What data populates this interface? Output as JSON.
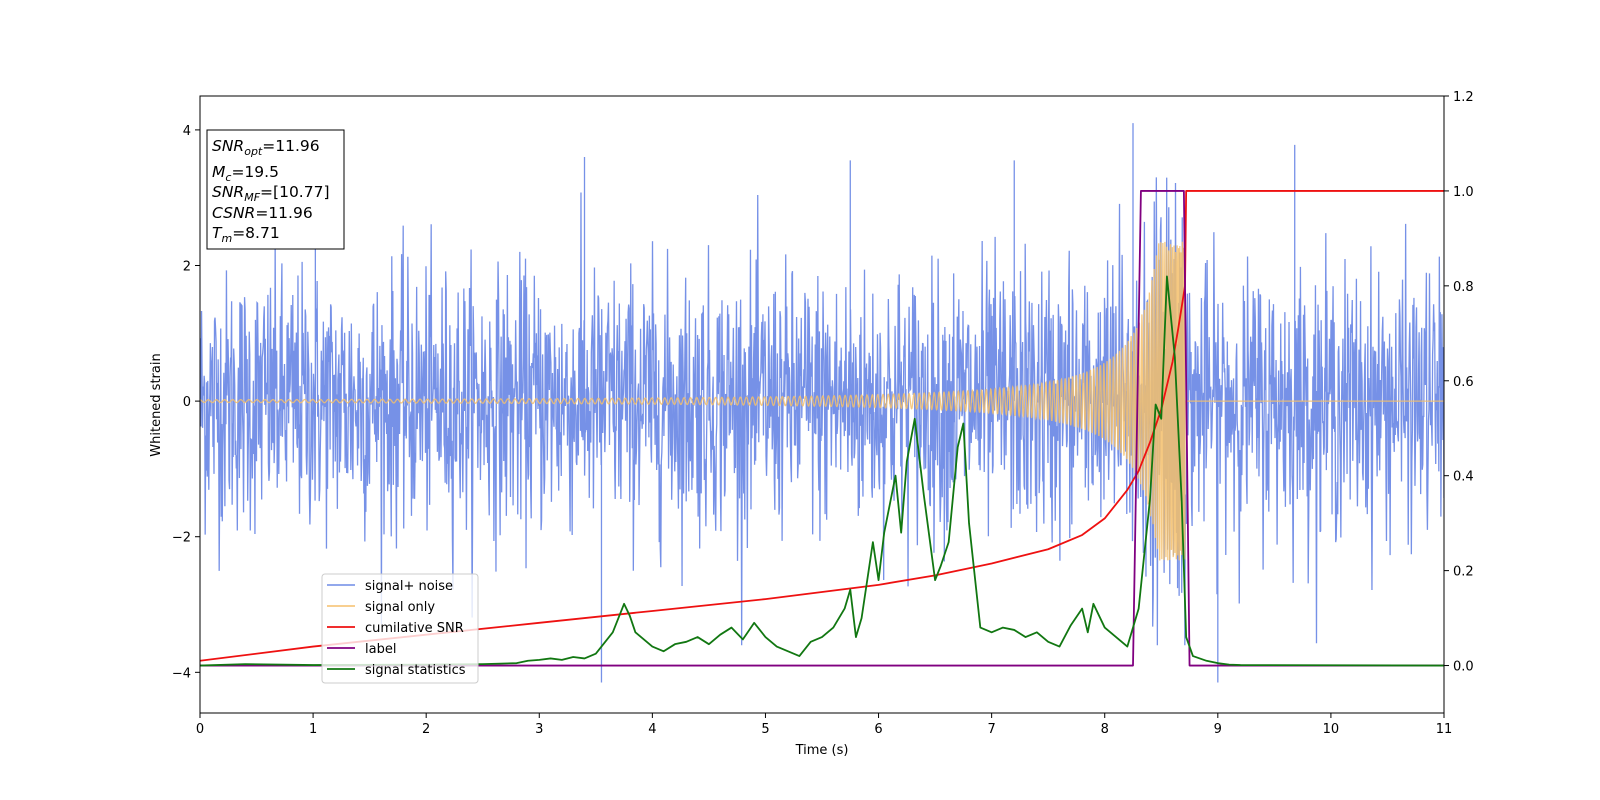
{
  "chart_data": {
    "type": "line",
    "xlabel": "Time (s)",
    "ylabel": "Whitened strain",
    "xlim": [
      0,
      11
    ],
    "ylim_left": [
      -4.6,
      4.5
    ],
    "ylim_right": [
      -0.1,
      1.2
    ],
    "x_ticks": [
      "0",
      "1",
      "2",
      "3",
      "4",
      "5",
      "6",
      "7",
      "8",
      "9",
      "10",
      "11"
    ],
    "y_ticks_left": [
      "−4",
      "−2",
      "0",
      "2",
      "4"
    ],
    "y_ticks_right": [
      "0.0",
      "0.2",
      "0.4",
      "0.6",
      "0.8",
      "1.0",
      "1.2"
    ],
    "grid": false,
    "legend_position": "lower-left",
    "annotation": {
      "snr_opt": {
        "prefix": "SNR",
        "sub": "opt",
        "value": "=11.96"
      },
      "mc": {
        "prefix": "M",
        "sub": "c",
        "value": "=19.5"
      },
      "snr_mf": {
        "prefix": "SNR",
        "sub": "MF",
        "value": "=[10.77]"
      },
      "csnr": {
        "prefix": "CSNR",
        "value": "=11.96"
      },
      "tm": {
        "prefix": "T",
        "sub": "m",
        "value": "=8.71"
      }
    },
    "series": [
      {
        "name": "signal+ noise",
        "axis": "left",
        "color": "#6f8be6",
        "envelope_sd": 1.0,
        "t_start": 0,
        "t_end": 11,
        "peaks": [
          [
            3.55,
            -4.15
          ],
          [
            8.25,
            4.1
          ],
          [
            9.0,
            -4.15
          ],
          [
            9.68,
            3.78
          ],
          [
            3.4,
            3.6
          ],
          [
            7.2,
            3.55
          ],
          [
            5.75,
            3.55
          ],
          [
            1.02,
            3.4
          ]
        ]
      },
      {
        "name": "signal only",
        "axis": "left",
        "color": "#f5bf6b",
        "t_start": 0,
        "t_merger": 8.71,
        "amplitude_start": 0.02,
        "amplitude_peak": 2.35,
        "cycles": 192
      },
      {
        "name": "cumilative SNR",
        "axis": "right",
        "color": "#ee1111",
        "x": [
          0,
          1,
          2,
          3,
          4,
          5,
          5.5,
          6,
          6.5,
          7,
          7.5,
          7.8,
          8.0,
          8.2,
          8.3,
          8.4,
          8.5,
          8.6,
          8.65,
          8.71,
          8.72,
          11
        ],
        "y": [
          0.01,
          0.04,
          0.065,
          0.09,
          0.115,
          0.14,
          0.155,
          0.17,
          0.19,
          0.215,
          0.245,
          0.275,
          0.31,
          0.37,
          0.41,
          0.47,
          0.54,
          0.64,
          0.71,
          0.8,
          1.0,
          1.0
        ]
      },
      {
        "name": "label",
        "axis": "right",
        "color": "#800080",
        "x": [
          0,
          8.25,
          8.32,
          8.7,
          8.75,
          11
        ],
        "y": [
          0,
          0,
          1,
          1,
          0,
          0
        ]
      },
      {
        "name": "signal statistics",
        "axis": "right",
        "color": "#117711",
        "x": [
          0,
          0.4,
          1,
          2,
          2.5,
          2.8,
          2.9,
          3.0,
          3.1,
          3.2,
          3.3,
          3.4,
          3.5,
          3.55,
          3.65,
          3.75,
          3.8,
          3.85,
          3.9,
          4.0,
          4.1,
          4.2,
          4.3,
          4.4,
          4.5,
          4.6,
          4.7,
          4.8,
          4.9,
          5.0,
          5.1,
          5.2,
          5.3,
          5.4,
          5.5,
          5.6,
          5.7,
          5.75,
          5.8,
          5.85,
          5.95,
          6.0,
          6.05,
          6.15,
          6.2,
          6.25,
          6.32,
          6.4,
          6.5,
          6.55,
          6.62,
          6.7,
          6.75,
          6.8,
          6.9,
          7.0,
          7.1,
          7.2,
          7.3,
          7.4,
          7.5,
          7.6,
          7.7,
          7.8,
          7.85,
          7.9,
          8.0,
          8.1,
          8.2,
          8.3,
          8.4,
          8.45,
          8.5,
          8.55,
          8.62,
          8.68,
          8.72,
          8.78,
          8.9,
          9.0,
          9.1,
          9.2,
          11
        ],
        "y": [
          0,
          0.003,
          0.001,
          0.002,
          0.003,
          0.005,
          0.01,
          0.012,
          0.015,
          0.012,
          0.018,
          0.015,
          0.025,
          0.04,
          0.07,
          0.13,
          0.105,
          0.07,
          0.06,
          0.04,
          0.03,
          0.045,
          0.05,
          0.06,
          0.045,
          0.065,
          0.08,
          0.055,
          0.09,
          0.06,
          0.04,
          0.03,
          0.02,
          0.05,
          0.06,
          0.08,
          0.12,
          0.16,
          0.06,
          0.1,
          0.26,
          0.18,
          0.28,
          0.4,
          0.28,
          0.43,
          0.52,
          0.36,
          0.18,
          0.21,
          0.26,
          0.46,
          0.51,
          0.3,
          0.08,
          0.07,
          0.08,
          0.075,
          0.06,
          0.07,
          0.05,
          0.04,
          0.085,
          0.12,
          0.07,
          0.13,
          0.08,
          0.06,
          0.04,
          0.12,
          0.35,
          0.55,
          0.52,
          0.82,
          0.65,
          0.35,
          0.06,
          0.02,
          0.01,
          0.005,
          0.002,
          0.001,
          0
        ]
      }
    ]
  }
}
